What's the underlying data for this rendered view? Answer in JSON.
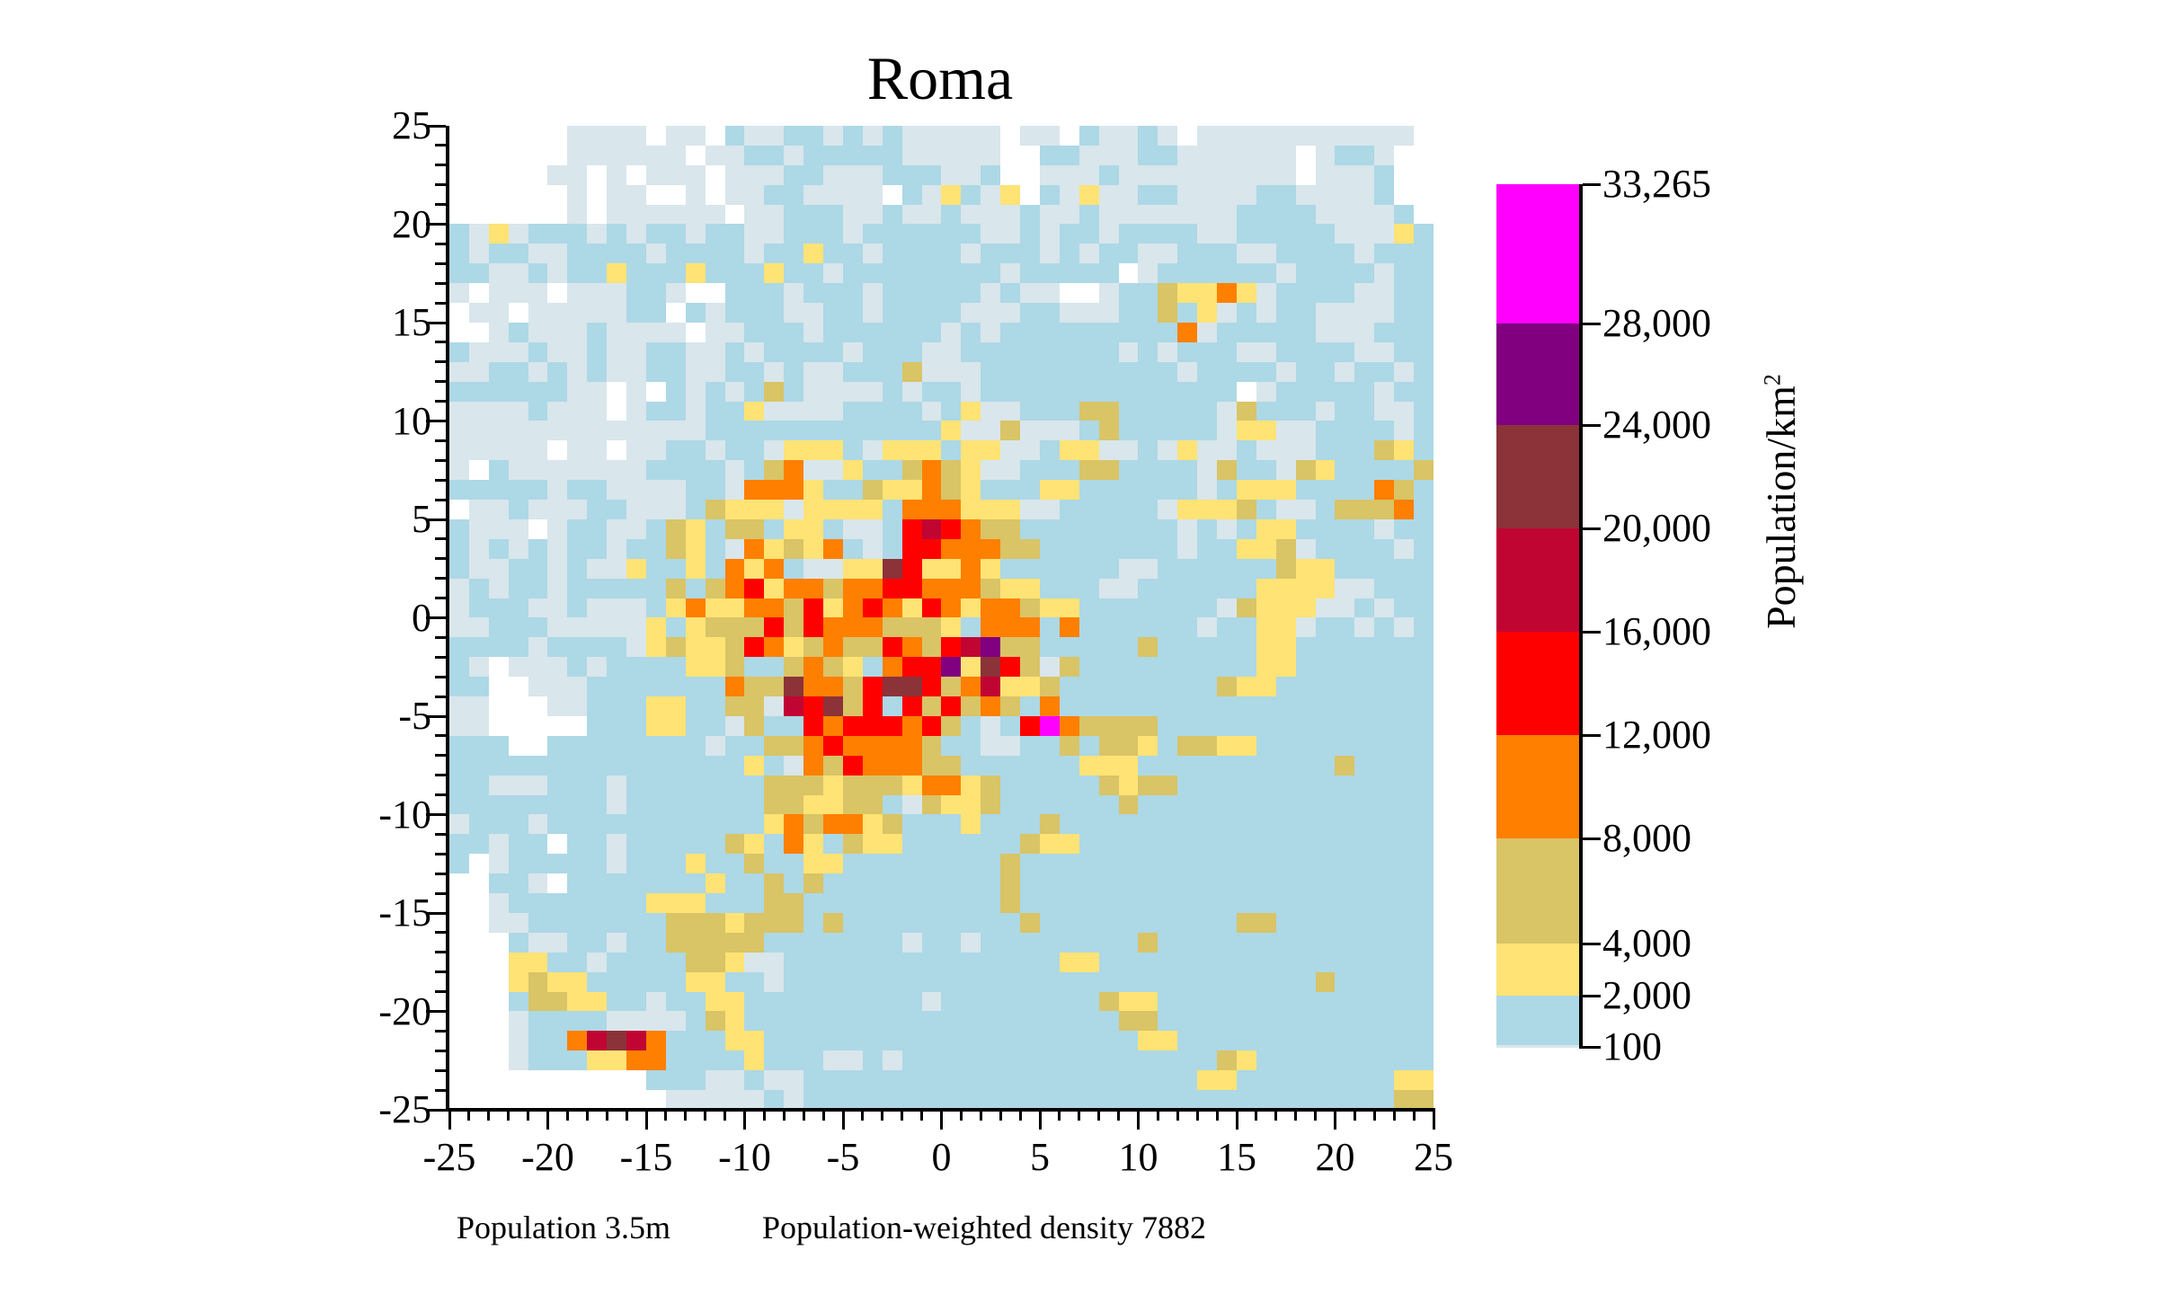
{
  "title": "Roma",
  "footer": {
    "population": "Population 3.5m",
    "weighted_density": "Population-weighted density 7882"
  },
  "colorbar": {
    "title": "Population/km",
    "title_sup": "2",
    "ticks": [
      "33,265",
      "28,000",
      "24,000",
      "20,000",
      "16,000",
      "12,000",
      "8,000",
      "4,000",
      "2,000",
      "100"
    ],
    "segments": [
      {
        "from": 28000,
        "to": 33265,
        "color": "#ff00ff"
      },
      {
        "from": 24000,
        "to": 28000,
        "color": "#800080"
      },
      {
        "from": 20000,
        "to": 24000,
        "color": "#8c3239"
      },
      {
        "from": 16000,
        "to": 20000,
        "color": "#c10533"
      },
      {
        "from": 12000,
        "to": 16000,
        "color": "#ff0000"
      },
      {
        "from": 8000,
        "to": 12000,
        "color": "#ff7f00"
      },
      {
        "from": 4000,
        "to": 8000,
        "color": "#d9c466"
      },
      {
        "from": 2000,
        "to": 4000,
        "color": "#ffe375"
      },
      {
        "from": 100,
        "to": 2000,
        "color": "#add8e6"
      }
    ]
  },
  "chart_data": {
    "type": "heatmap",
    "title": "Roma",
    "xlabel": "",
    "ylabel": "",
    "xlim": [
      -25,
      25
    ],
    "ylim": [
      -25,
      25
    ],
    "x_ticks": [
      "-25",
      "-20",
      "-15",
      "-10",
      "-5",
      "0",
      "5",
      "10",
      "15",
      "20",
      "25"
    ],
    "y_ticks": [
      "25",
      "20",
      "15",
      "10",
      "5",
      "0",
      "-5",
      "-10",
      "-15",
      "-20",
      "-25"
    ],
    "cell_size_km": 1,
    "colorbar_label": "Population/km2",
    "colorbar_range": [
      100,
      33265
    ],
    "palette": {
      ".": "#ffffff",
      "p": "#d9e6ec",
      "b": "#add8e6",
      "y": "#ffe375",
      "k": "#d9c466",
      "o": "#ff7f00",
      "r": "#ff0000",
      "c": "#c10533",
      "m": "#8c3239",
      "v": "#800080",
      "g": "#ff00ff"
    },
    "palette_meaning": {
      ".": "no data / <100",
      "p": "100-~500",
      "b": "~500-2,000",
      "y": "2,000-4,000",
      "k": "4,000-8,000",
      "o": "8,000-12,000",
      "r": "12,000-16,000",
      "c": "16,000-20,000",
      "m": "20,000-24,000",
      "v": "24,000-28,000",
      "g": "28,000-33,265"
    },
    "rows_top_to_bottom": [
      "......pppp.pp.bppbbpbpbppppp.pp.bppbp.ppppppppppp.",
      "......pppppp.ppbbpbbbbbppppp..bbpppbbpppppp.pbbp..",
      ".....pp.p.ppp.pppbbpppbbbppb..pppbppppppppp.pppb..",
      "......p.pp..p.ppbbpppp.bpybpy.bpyppbbppppbbppppb..",
      "......p.pppppp.ppbbbppbppbpppbppbpppppppbbbbppppb.",
      "bpypbbbpbpbbpbbppbbbpbbbbbbppbpbbpbbbbppbbbbbpppyb",
      "bpbbppbbbbpbbbbpbbybbpbbbbpbbbpbpbbppbbbppbbbbpbbb",
      "bbppbpbbybbbybbbybbpbbbbbbbbpbbbbb.pbbbbbbpbbbbpbb",
      "p.ppp.pppbbp..bbbpbbbpbbbbbpbpp..pbbkyyoypbbbbppbb",
      ".pp.pppppbb.bpbbbppbbpbbbbpppbbpppbbkbypbpbbppppbb",
      "..pbpppbpppp.ppbbbpbbbbbbpbpbbbbbbbbbopbbbbbpppbbb",
      "bpppbppbppbbppbpbbbbpbbbppbbbbbbbbpbpbbbppbbbbppbb",
      "ppbbpbpbppbbppbbpbppbbbkpppbbbbbbbbbbpbbbbpbbpbbpb",
      "bbbbbbpp.p.bpbpbkbppppbpbbpbbbbbbbbbbbbb.pbbbbbpbb",
      "ppppbppp.pbbpbbyppppbbbbpbyppbbbkkbbbbbpkbbbpbbppb",
      "pppppppppppppbbbbbbbbbbbbyppkpppbkbbbbbpyyppbbbbpb",
      "ppppp.pp.ppbbpbbpyyybpyyybyyppbyyppbpyppbpppbbbkyb",
      "p.bpppppppbbbbpbkoppybbkokyppbbbkkbbbbpkbbpkybbbbk",
      "bbbbbpbbppppbbpoooybbkyyokybbbyybbbbbbpbyyybbbbokb",
      ".ppbpppbbpppbkyyypyyyyboooyyyppbbbbbpyyykbppbkkkob",
      "bppp.pbbppbkybkkbyybppbrcrokkbbbbbbbbpbpbyybbbbpbb",
      "bpbpbpbbpbbkybpoykyobpbrroookkbbbbbbbpbbyykpbbbbpb",
      "bppbbpbppybbyboyobppyymryyoybbbbbbppbbbbbbkyybbbbb",
      "pbpbbpbbbbbkbkoryookoorroookyybbbppbbbbbbyyyyppbbb",
      "pbbbppbpppbyoyyookryoroyroyookyybbbbbbbpkyyyppbpbb",
      "ppbbbpppppybykkkrkroookkkybooobobbbbbbpbbyypbbpbpb",
      "bbbbpbbbbpykyykroykokkrokrcvkkbbbbbkbbbbbyybbbbbbb",
      "bp.pppbpbbbbyykbbkokyborrvymrkpkbbbbbbbbbyybbbbbbb",
      "bb..pppbbbbbbbokkmookrmmrkocyykbbbbbbbbkyybbbbbbbb",
      "pp...ppbbbyybbkkpcrmkrjrkrkoksobbbbbbbbbbbbbbbbbbb",
      "pp.....bbbyybbpkbbrorrrorkbpbrgokkkkbbbbbbbbbbbbbb",
      "bbb..bbbbbbbbpbbkkorooookbbppbbkbkkybkkyybbbbbbbbb",
      "bbbbbbbbbbbbbbbybpokroookkbbbbbbyyybbbbbbbbbbkbbbb",
      "bbpppbbbpbbbbbbbkkkykkkyooykbbbbbkykkbbbbbbbbbbbbb",
      "bbbbbbbbpbbbbbbbkkyykkbpkyykbbbbbbkbbbbbbbbbbbbbbb",
      "pbbbpbbbbbbbbbbbyokooykbbbybbbkbbbbbbbbbbbbbbbbbbb",
      "bbpbb.bbpbbbbbkyboybkyybbbbbbkyybbbbbbbbbbbbbbbbbb",
      "b.pbbbbbpbbbybbkbbyybbbbbbbbkbbbbbbbbbbbbbbbbbbbbb",
      "..bbp.bbbbbbbybbkbkbbbbbbbbbkbbbbbbbbbbbbbbbbbbbbb",
      "..pbbbbbbbyyybbbkkbbbbbbbbbbkbbbbbbbbbbbbbbbbbbbbb",
      "..ppbbbbbbbkkkykkkbkbbbbbbbbbkbbbbbbbbbbkkbbbbbbbb",
      "...bppbbpbbkkkkkbbbbbbbpbbpbbbbbbbbkbbbbbbbbbbbbbb",
      "...yybbpbbbbkkyppbbbbbbbbbbbbbbyybbbbbbbbbbbbbbbbb",
      "...ykyybbbbbyybbpbbbbbbbbbbbbbbbbbbbbbbbbbbbkbbbbb",
      "...bkkyybbpbbyybbbbbbbbbpbbbbbbbbkyybbbbbbbbbbbbbb",
      "...pbbbbppppbkybbbbbbbbbbbbbbbbbbbkkbbbbbbbbbbbbbb",
      "...pbbocmcobbbyybbbbbbbbbbbbbbbbbbbyybbbbbbbbbbbbb",
      "...pbbbyyoobbbbybbbppbpbbbbbbbbbbbbbbbbkybbbbbbbbb",
      "..........bbbppbppbbbbbbbbbbbbbbbbbbbbyybbbbbbbbyy",
      "...........pppppbpbbbbbbbbbbbbbbbbbbbbbbbbbbbbbbkk"
    ]
  }
}
